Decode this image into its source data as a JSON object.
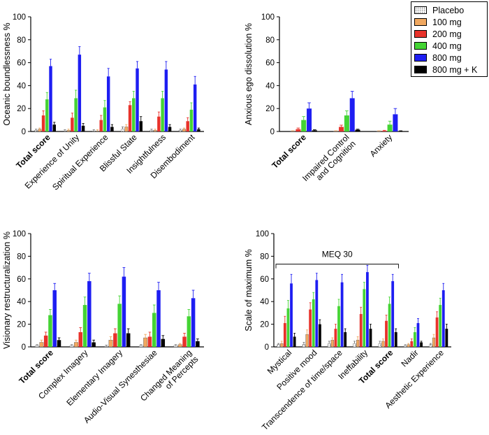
{
  "legend": [
    {
      "label": "Placebo",
      "color": "#ffffff",
      "pattern": "dots"
    },
    {
      "label": "100 mg",
      "color": "#f0a860"
    },
    {
      "label": "200 mg",
      "color": "#e8322a"
    },
    {
      "label": "400 mg",
      "color": "#44d434"
    },
    {
      "label": "800 mg",
      "color": "#1e1ef2"
    },
    {
      "label": "800 mg + K",
      "color": "#000000"
    }
  ],
  "chart_data": [
    {
      "type": "bar",
      "ylabel": "Oceanic boundlessness %",
      "ylim": [
        0,
        100
      ],
      "yticks": [
        0,
        20,
        40,
        60,
        80,
        100
      ],
      "categories": [
        "Total score",
        "Experience of Unity",
        "Spiritual Experience",
        "Blissful State",
        "Insightfulness",
        "Disembodiment"
      ],
      "bold_categories": [
        "Total score"
      ],
      "series": [
        {
          "name": "Placebo",
          "values": [
            1,
            0.5,
            0.5,
            2,
            1,
            1
          ],
          "errors": [
            1,
            1,
            1,
            2,
            1,
            1
          ]
        },
        {
          "name": "100 mg",
          "values": [
            2,
            1,
            0.5,
            4,
            1,
            2
          ],
          "errors": [
            1,
            1,
            1,
            2,
            1,
            1
          ]
        },
        {
          "name": "200 mg",
          "values": [
            14,
            12,
            10,
            23,
            13,
            9
          ],
          "errors": [
            4,
            4,
            4,
            3,
            4,
            3
          ]
        },
        {
          "name": "400 mg",
          "values": [
            28,
            29,
            21,
            29,
            29,
            19
          ],
          "errors": [
            6,
            7,
            6,
            6,
            6,
            6
          ]
        },
        {
          "name": "800 mg",
          "values": [
            57,
            67,
            48,
            55,
            54,
            41
          ],
          "errors": [
            6,
            7,
            7,
            6,
            7,
            7
          ]
        },
        {
          "name": "800 mg + K",
          "values": [
            6,
            5,
            4,
            9,
            4,
            2
          ],
          "errors": [
            2,
            2,
            2,
            4,
            2,
            1
          ]
        }
      ]
    },
    {
      "type": "bar",
      "ylabel": "Anxious ego dissolution %",
      "ylim": [
        0,
        100
      ],
      "yticks": [
        0,
        20,
        40,
        60,
        80,
        100
      ],
      "categories": [
        "Total score",
        "Impaired Control\nand Cognition",
        "Anxiety"
      ],
      "bold_categories": [
        "Total score"
      ],
      "series": [
        {
          "name": "Placebo",
          "values": [
            0,
            0,
            0
          ],
          "errors": [
            0,
            0,
            0
          ]
        },
        {
          "name": "100 mg",
          "values": [
            0.3,
            0.3,
            0.3
          ],
          "errors": [
            0.3,
            0.3,
            0.3
          ]
        },
        {
          "name": "200 mg",
          "values": [
            2,
            4,
            0.5
          ],
          "errors": [
            1,
            1.5,
            0.5
          ]
        },
        {
          "name": "400 mg",
          "values": [
            10,
            14,
            6
          ],
          "errors": [
            3,
            4,
            3
          ]
        },
        {
          "name": "800 mg",
          "values": [
            20,
            29,
            15
          ],
          "errors": [
            5,
            6,
            5
          ]
        },
        {
          "name": "800 mg + K",
          "values": [
            1,
            1.5,
            0.3
          ],
          "errors": [
            0.5,
            0.5,
            0.3
          ]
        }
      ]
    },
    {
      "type": "bar",
      "ylabel": "Visionary restructuralization %",
      "ylim": [
        0,
        100
      ],
      "yticks": [
        0,
        20,
        40,
        60,
        80,
        100
      ],
      "categories": [
        "Total score",
        "Complex Imagery",
        "Elementary Imagery",
        "Audio-Visual Synesthesiae",
        "Changed Meaning\nof Percepts"
      ],
      "bold_categories": [
        "Total score"
      ],
      "series": [
        {
          "name": "Placebo",
          "values": [
            1,
            1,
            0.5,
            1,
            1
          ],
          "errors": [
            1,
            1,
            1,
            1,
            1
          ]
        },
        {
          "name": "100 mg",
          "values": [
            4,
            4,
            6,
            8,
            2
          ],
          "errors": [
            2,
            2,
            3,
            3,
            1
          ]
        },
        {
          "name": "200 mg",
          "values": [
            10,
            13,
            12,
            9,
            9
          ],
          "errors": [
            3,
            4,
            4,
            4,
            3
          ]
        },
        {
          "name": "400 mg",
          "values": [
            28,
            37,
            38,
            30,
            27
          ],
          "errors": [
            5,
            7,
            7,
            7,
            6
          ]
        },
        {
          "name": "800 mg",
          "values": [
            50,
            58,
            62,
            50,
            43
          ],
          "errors": [
            6,
            7,
            8,
            7,
            7
          ]
        },
        {
          "name": "800 mg + K",
          "values": [
            6,
            4,
            12,
            7,
            5
          ],
          "errors": [
            2,
            2,
            4,
            3,
            2
          ]
        }
      ]
    },
    {
      "type": "bar",
      "ylabel": "Scale of maximum %",
      "ylim": [
        0,
        100
      ],
      "yticks": [
        0,
        20,
        40,
        60,
        80,
        100
      ],
      "categories": [
        "Mystical",
        "Positive mood",
        "Transcendence of time/space",
        "Ineffability",
        "Total score",
        "Nadir",
        "Aesthetic Experience"
      ],
      "bold_categories": [
        "Total score"
      ],
      "annotation": {
        "text": "MEQ 30",
        "spans_categories": [
          0,
          4
        ]
      },
      "series": [
        {
          "name": "Placebo",
          "values": [
            2,
            2,
            3,
            3,
            3,
            1,
            2
          ],
          "errors": [
            1,
            2,
            2,
            2,
            2,
            1,
            1
          ]
        },
        {
          "name": "100 mg",
          "values": [
            3,
            11,
            6,
            6,
            5,
            2,
            8
          ],
          "errors": [
            2,
            4,
            2,
            3,
            2,
            1,
            3
          ]
        },
        {
          "name": "200 mg",
          "values": [
            21,
            33,
            16,
            29,
            23,
            5,
            26
          ],
          "errors": [
            6,
            6,
            4,
            6,
            5,
            2,
            5
          ]
        },
        {
          "name": "400 mg",
          "values": [
            34,
            42,
            36,
            51,
            38,
            13,
            37
          ],
          "errors": [
            7,
            6,
            6,
            6,
            6,
            4,
            6
          ]
        },
        {
          "name": "800 mg",
          "values": [
            56,
            59,
            57,
            66,
            58,
            21,
            50
          ],
          "errors": [
            8,
            6,
            7,
            6,
            6,
            4,
            6
          ]
        },
        {
          "name": "800 mg + K",
          "values": [
            9,
            20,
            13,
            16,
            13,
            4,
            16
          ],
          "errors": [
            3,
            4,
            3,
            4,
            3,
            1,
            4
          ]
        }
      ]
    }
  ]
}
